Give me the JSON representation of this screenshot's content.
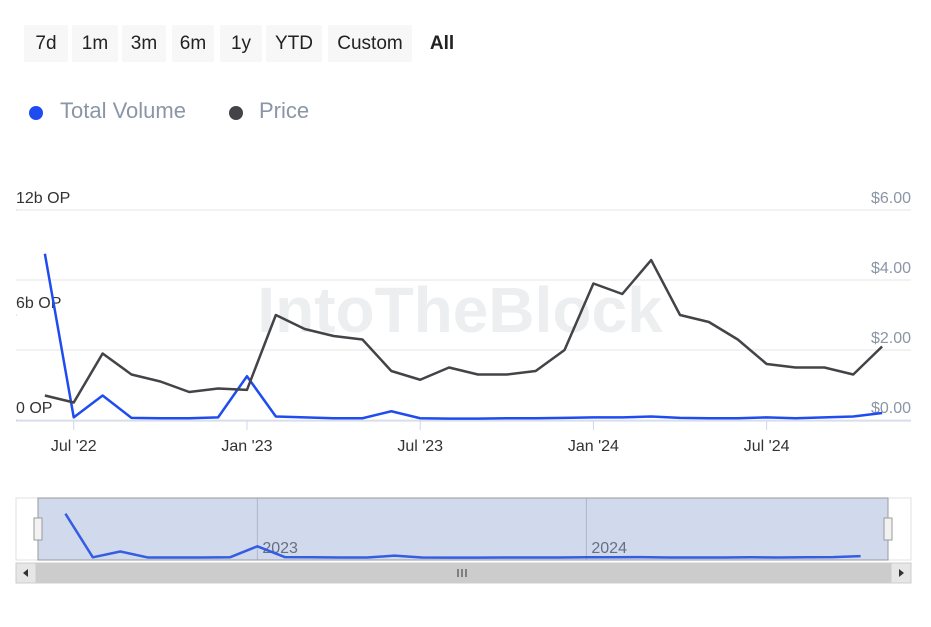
{
  "range_buttons": [
    "7d",
    "1m",
    "3m",
    "6m",
    "1y",
    "YTD",
    "Custom",
    "All"
  ],
  "watermark": "IntoTheBlock",
  "navigator_labels": [
    "2023",
    "2024"
  ],
  "chart_data": {
    "type": "line",
    "x": [
      "2022-06",
      "2022-07",
      "2022-08",
      "2022-09",
      "2022-10",
      "2022-11",
      "2022-12",
      "2023-01",
      "2023-02",
      "2023-03",
      "2023-04",
      "2023-05",
      "2023-06",
      "2023-07",
      "2023-08",
      "2023-09",
      "2023-10",
      "2023-11",
      "2023-12",
      "2024-01",
      "2024-02",
      "2024-03",
      "2024-04",
      "2024-05",
      "2024-06",
      "2024-07",
      "2024-08",
      "2024-09",
      "2024-10",
      "2024-11"
    ],
    "xlim": [
      "2022-05",
      "2024-12"
    ],
    "xticks": [
      {
        "value": "2022-07",
        "label": "Jul '22"
      },
      {
        "value": "2023-01",
        "label": "Jan '23"
      },
      {
        "value": "2023-07",
        "label": "Jul '23"
      },
      {
        "value": "2024-01",
        "label": "Jan '24"
      },
      {
        "value": "2024-07",
        "label": "Jul '24"
      }
    ],
    "ylim": [
      0,
      12000000000
    ],
    "yticks": [
      {
        "value": 0,
        "label": "0 OP"
      },
      {
        "value": 6000000000,
        "label": "6b OP"
      },
      {
        "value": 12000000000,
        "label": "12b OP"
      }
    ],
    "y2lim": [
      0,
      6
    ],
    "y2ticks": [
      {
        "value": 0,
        "label": "$0.00"
      },
      {
        "value": 2,
        "label": "$2.00"
      },
      {
        "value": 4,
        "label": "$4.00"
      },
      {
        "value": 6,
        "label": "$6.00"
      }
    ],
    "grid": true,
    "series": [
      {
        "name": "Total Volume",
        "color": "#1f4cf0",
        "values": [
          9500000000,
          150000000,
          1400000000,
          120000000,
          100000000,
          100000000,
          150000000,
          2500000000,
          200000000,
          150000000,
          100000000,
          100000000,
          500000000,
          100000000,
          80000000,
          80000000,
          100000000,
          100000000,
          120000000,
          150000000,
          150000000,
          200000000,
          120000000,
          100000000,
          100000000,
          150000000,
          100000000,
          150000000,
          200000000,
          400000000
        ]
      },
      {
        "name": "Price",
        "color": "#434348",
        "axis": "y2",
        "values": [
          0.7,
          0.5,
          1.9,
          1.3,
          1.1,
          0.8,
          0.9,
          0.86,
          3.0,
          2.6,
          2.4,
          2.3,
          1.4,
          1.15,
          1.5,
          1.3,
          1.3,
          1.4,
          2.0,
          3.9,
          3.6,
          4.57,
          3.0,
          2.8,
          2.3,
          1.6,
          1.5,
          1.5,
          1.3,
          2.1
        ]
      }
    ]
  }
}
